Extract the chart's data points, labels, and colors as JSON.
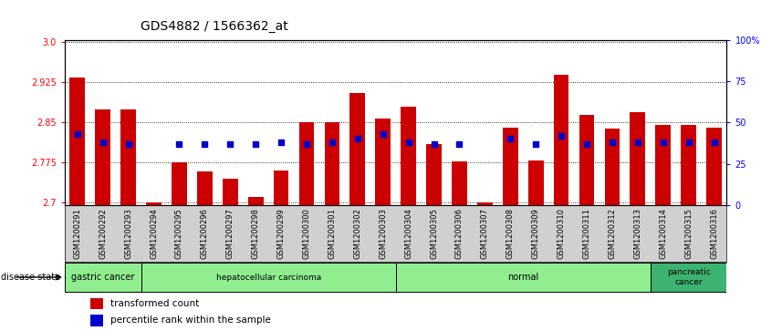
{
  "title": "GDS4882 / 1566362_at",
  "samples": [
    "GSM1200291",
    "GSM1200292",
    "GSM1200293",
    "GSM1200294",
    "GSM1200295",
    "GSM1200296",
    "GSM1200297",
    "GSM1200298",
    "GSM1200299",
    "GSM1200300",
    "GSM1200301",
    "GSM1200302",
    "GSM1200303",
    "GSM1200304",
    "GSM1200305",
    "GSM1200306",
    "GSM1200307",
    "GSM1200308",
    "GSM1200309",
    "GSM1200310",
    "GSM1200311",
    "GSM1200312",
    "GSM1200313",
    "GSM1200314",
    "GSM1200315",
    "GSM1200316"
  ],
  "bar_values": [
    2.935,
    2.875,
    2.875,
    2.7,
    2.775,
    2.758,
    2.745,
    2.71,
    2.76,
    2.85,
    2.85,
    2.905,
    2.858,
    2.88,
    2.81,
    2.777,
    2.7,
    2.84,
    2.778,
    2.94,
    2.865,
    2.838,
    2.87,
    2.845,
    2.845,
    2.84
  ],
  "pct_ranks": [
    43,
    38,
    37,
    null,
    37,
    37,
    37,
    37,
    38,
    37,
    38,
    40,
    43,
    38,
    37,
    37,
    null,
    40,
    37,
    42,
    37,
    38,
    38,
    38,
    38,
    38
  ],
  "disease_groups": [
    {
      "label": "gastric cancer",
      "start": 0,
      "end": 2,
      "color": "#90EE90"
    },
    {
      "label": "hepatocellular carcinoma",
      "start": 3,
      "end": 12,
      "color": "#90EE90"
    },
    {
      "label": "normal",
      "start": 13,
      "end": 22,
      "color": "#90EE90"
    },
    {
      "label": "pancreatic\ncancer",
      "start": 23,
      "end": 25,
      "color": "#3CB371"
    }
  ],
  "ylim_left": [
    2.695,
    3.005
  ],
  "ylim_right": [
    0,
    100
  ],
  "yticks_left": [
    2.7,
    2.775,
    2.85,
    2.925,
    3.0
  ],
  "yticks_right": [
    0,
    25,
    50,
    75,
    100
  ],
  "bar_color": "#CC0000",
  "dot_color": "#0000CC",
  "bar_width": 0.6,
  "title_fontsize": 10,
  "tick_fontsize": 7,
  "label_fontsize": 7
}
